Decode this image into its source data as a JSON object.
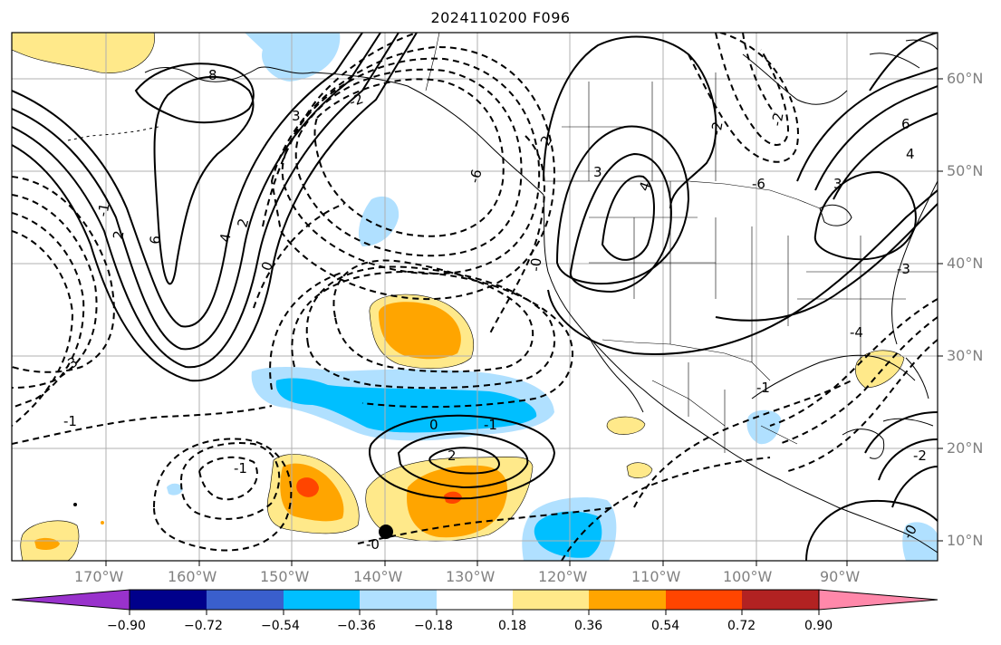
{
  "title": "2024110200 F096",
  "colors": {
    "frame": "#000000",
    "grid": "#b0b0b0",
    "land_fill": "#ffffff",
    "pos1": "#ffe98a",
    "pos2": "#ffa500",
    "pos3": "#ff4500",
    "neg1": "#b0e0ff",
    "neg2": "#00bfff",
    "hawaii_dot": "#000000"
  },
  "axes": {
    "lon_labels": [
      "170°W",
      "160°W",
      "150°W",
      "140°W",
      "130°W",
      "120°W",
      "110°W",
      "100°W",
      "90°W"
    ],
    "lat_labels": [
      "60°N",
      "50°N",
      "40°N",
      "30°N",
      "20°N",
      "10°N"
    ]
  },
  "colorbar": {
    "colors": [
      "#9932cc",
      "#00008b",
      "#3a5fcd",
      "#00bfff",
      "#b0e0ff",
      "#ffffff",
      "#ffe98a",
      "#ffa500",
      "#ff4500",
      "#b22222",
      "#ff88aa"
    ],
    "tick_labels": [
      "−0.90",
      "−0.72",
      "−0.54",
      "−0.36",
      "−0.18",
      "0.18",
      "0.36",
      "0.54",
      "0.72",
      "0.90"
    ]
  },
  "contour_labels": [
    "8",
    "6",
    "4",
    "2",
    "3",
    "0",
    "-2",
    "-6",
    "-0",
    "2",
    "-1",
    "2",
    "-3",
    "-1",
    "-1",
    "-0",
    "0",
    "3",
    "4",
    "-2",
    "-6",
    "6",
    "3",
    "-3",
    "-2",
    "-1",
    "-2",
    "-0",
    "-4",
    "2",
    "4",
    "-1"
  ]
}
